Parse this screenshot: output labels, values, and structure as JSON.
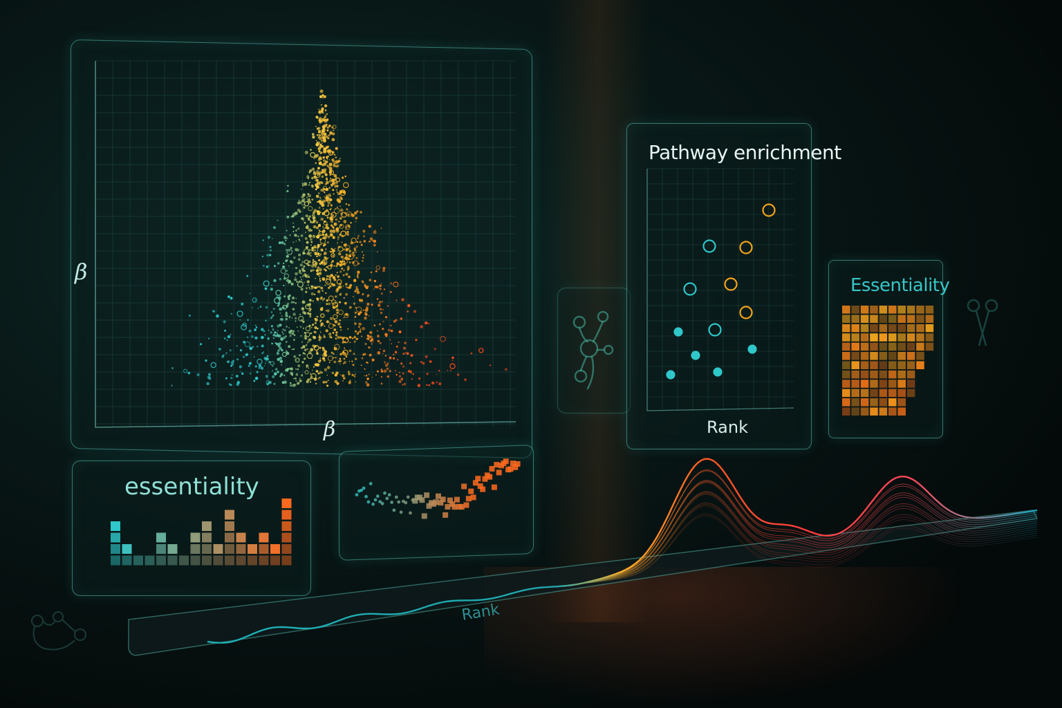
{
  "main_chart": {
    "y_label": "β",
    "x_label": "β"
  },
  "essentiality_small": {
    "title": "essentiality",
    "bar_values": [
      4,
      2,
      1,
      1,
      3,
      2,
      1,
      3,
      4,
      2,
      5,
      3,
      2,
      3,
      2,
      6
    ]
  },
  "pathway_panel": {
    "title": "Pathway enrichment",
    "x_label": "Rank"
  },
  "essentiality_heatmap": {
    "title": "Essentiality"
  },
  "rank_strip": {
    "label": "Rank"
  },
  "colors": {
    "teal": "#2fc7c9",
    "amber": "#f2a31e",
    "orange": "#ff6a1f",
    "red": "#ff3b3b",
    "panel_border": "#5cc8be"
  }
}
